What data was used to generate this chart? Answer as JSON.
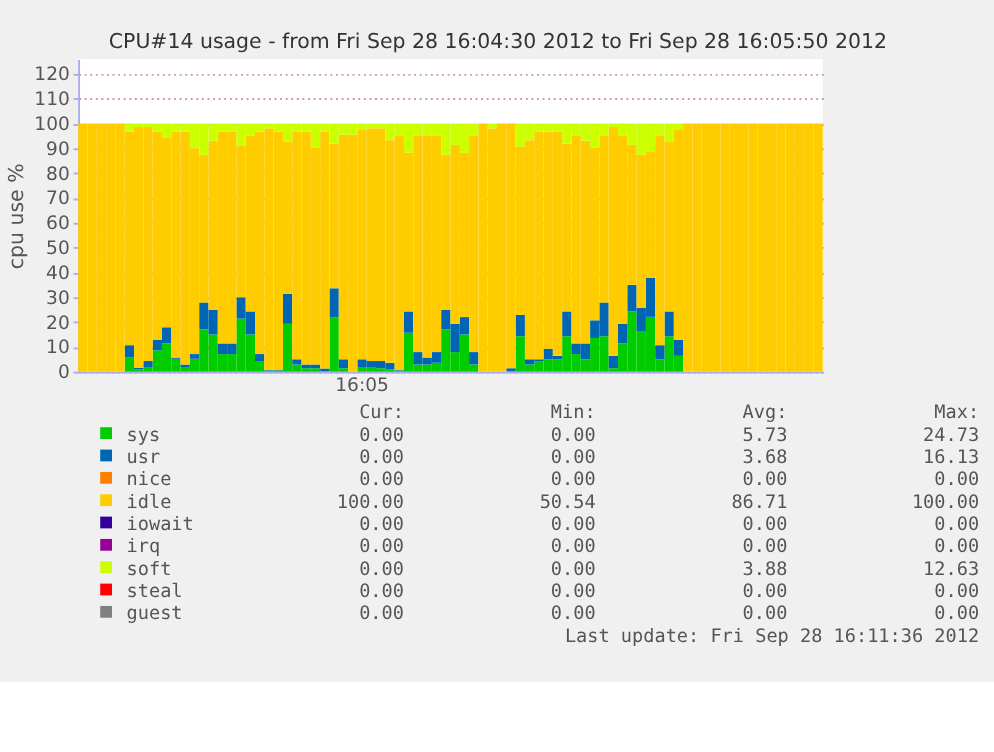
{
  "chart_data": {
    "type": "bar",
    "stacked": true,
    "title": "CPU#14 usage - from Fri Sep 28 16:04:30 2012 to Fri Sep 28 16:05:50 2012",
    "ylabel": "cpu use %",
    "categories": [
      null,
      null,
      null,
      null,
      null,
      null,
      null,
      null,
      null,
      null,
      null,
      null,
      null,
      null,
      null,
      null,
      null,
      null,
      null,
      null,
      null,
      null,
      null,
      null,
      null,
      null,
      null,
      null,
      null,
      null,
      "16:05",
      null,
      null,
      null,
      null,
      null,
      null,
      null,
      null,
      null,
      null,
      null,
      null,
      null,
      null,
      null,
      null,
      null,
      null,
      null,
      null,
      null,
      null,
      null,
      null,
      null,
      null,
      null,
      null,
      null,
      null,
      null,
      null,
      null,
      null,
      null,
      null,
      null,
      null,
      null,
      null,
      null,
      null,
      null,
      null,
      null,
      null,
      null,
      null,
      null
    ],
    "ylim": [
      0,
      126
    ],
    "yticks": [
      0,
      10,
      20,
      30,
      40,
      50,
      60,
      70,
      80,
      90,
      100,
      110,
      120
    ],
    "grid": "y",
    "legend": "bottom",
    "series": [
      {
        "name": "sys",
        "color": "#00cc00",
        "values": [
          0,
          0,
          0,
          0,
          0,
          5.7,
          1,
          1.9,
          8.6,
          11.4,
          5.2,
          1.9,
          5.2,
          17.1,
          15,
          7.1,
          7.1,
          21.4,
          15,
          4.3,
          0.5,
          0.5,
          19.3,
          2.9,
          1.4,
          1.4,
          0.3,
          22,
          1.4,
          0,
          1.9,
          1.9,
          1.4,
          1,
          0.5,
          15.7,
          2.9,
          2.9,
          3.6,
          17.1,
          7.9,
          15,
          2.9,
          0,
          0,
          0,
          0.3,
          14.3,
          2.9,
          4.3,
          5,
          5,
          14.3,
          7.1,
          5,
          13.6,
          14.3,
          1.4,
          11.4,
          24.3,
          16.4,
          22.1,
          5,
          14.3,
          6.4,
          0,
          0,
          0,
          0,
          0,
          0,
          0,
          0,
          0,
          0,
          0,
          0,
          0,
          0,
          0
        ]
      },
      {
        "name": "usr",
        "color": "#0066b3",
        "values": [
          0,
          0,
          0,
          0,
          0,
          5,
          0.5,
          2.4,
          4.3,
          6.5,
          0.5,
          1,
          1.9,
          10.8,
          10,
          4.3,
          4.3,
          8.6,
          9.3,
          2.8,
          0.2,
          0.2,
          12.1,
          2.1,
          1.5,
          1.5,
          1,
          11.6,
          3.6,
          0,
          3.1,
          2.4,
          2.9,
          2.6,
          0.2,
          8.6,
          5,
          2.8,
          4.3,
          7.9,
          11.4,
          7,
          5,
          0,
          0,
          0,
          1.1,
          8.6,
          2.1,
          0.7,
          4.3,
          1.4,
          10,
          4.3,
          6.4,
          7.1,
          13.6,
          5,
          7.9,
          10.7,
          9.3,
          15.8,
          5.7,
          10,
          6.5,
          0,
          0,
          0,
          0,
          0,
          0,
          0,
          0,
          0,
          0,
          0,
          0,
          0,
          0,
          0
        ]
      },
      {
        "name": "nice",
        "color": "#ff8000",
        "values": [
          0,
          0,
          0,
          0,
          0,
          0,
          0,
          0,
          0,
          0,
          0,
          0,
          0,
          0,
          0,
          0,
          0,
          0,
          0,
          0,
          0,
          0,
          0,
          0,
          0,
          0,
          0,
          0,
          0,
          0,
          0,
          0,
          0,
          0,
          0,
          0,
          0,
          0,
          0,
          0,
          0,
          0,
          0,
          0,
          0,
          0,
          0,
          0,
          0,
          0,
          0,
          0,
          0,
          0,
          0,
          0,
          0,
          0,
          0,
          0,
          0,
          0,
          0,
          0,
          0,
          0,
          0,
          0,
          0,
          0,
          0,
          0,
          0,
          0,
          0,
          0,
          0,
          0,
          0,
          0
        ]
      },
      {
        "name": "idle",
        "color": "#ffcc00",
        "values": [
          100,
          100,
          100,
          100,
          100,
          86,
          97.1,
          94.3,
          83.8,
          76.6,
          91,
          93.8,
          82.9,
          59.5,
          68.1,
          85.3,
          85.3,
          61,
          70.7,
          89.6,
          97.4,
          96,
          61.2,
          91.7,
          93.8,
          87.3,
          95.4,
          58.4,
          90.5,
          95.5,
          92.4,
          93.8,
          93.8,
          89.7,
          94.3,
          64,
          87.1,
          89.3,
          87.1,
          62.4,
          72.1,
          66.3,
          87.1,
          100,
          98,
          100,
          98.6,
          67.8,
          88.3,
          91.7,
          87.4,
          90.3,
          67.6,
          83.6,
          81.7,
          69.5,
          67.1,
          92.2,
          75.7,
          56.4,
          61.7,
          50.9,
          84.3,
          68.3,
          84.5,
          100,
          100,
          100,
          100,
          100,
          100,
          100,
          100,
          100,
          100,
          100,
          100,
          100,
          100,
          100
        ]
      },
      {
        "name": "iowait",
        "color": "#330099",
        "values": [
          0,
          0,
          0,
          0,
          0,
          0,
          0,
          0,
          0,
          0,
          0,
          0,
          0,
          0,
          0,
          0,
          0,
          0,
          0,
          0,
          0,
          0,
          0,
          0,
          0,
          0,
          0,
          0,
          0,
          0,
          0,
          0,
          0,
          0,
          0,
          0,
          0,
          0,
          0,
          0,
          0,
          0,
          0,
          0,
          0,
          0,
          0,
          0,
          0,
          0,
          0,
          0,
          0,
          0,
          0,
          0,
          0,
          0,
          0,
          0,
          0,
          0,
          0,
          0,
          0,
          0,
          0,
          0,
          0,
          0,
          0,
          0,
          0,
          0,
          0,
          0,
          0,
          0,
          0,
          0
        ]
      },
      {
        "name": "irq",
        "color": "#990099",
        "values": [
          0,
          0,
          0,
          0,
          0,
          0,
          0,
          0,
          0,
          0,
          0,
          0,
          0,
          0,
          0,
          0,
          0,
          0,
          0,
          0,
          0,
          0,
          0,
          0,
          0,
          0,
          0,
          0,
          0,
          0,
          0,
          0,
          0,
          0,
          0,
          0,
          0,
          0,
          0,
          0,
          0,
          0,
          0,
          0,
          0,
          0,
          0,
          0,
          0,
          0,
          0,
          0,
          0,
          0,
          0,
          0,
          0,
          0,
          0,
          0,
          0,
          0,
          0,
          0,
          0,
          0,
          0,
          0,
          0,
          0,
          0,
          0,
          0,
          0,
          0,
          0,
          0,
          0,
          0,
          0
        ]
      },
      {
        "name": "soft",
        "color": "#ccff00",
        "values": [
          0,
          0,
          0,
          0,
          0,
          3.3,
          1.4,
          1.4,
          3.3,
          5.5,
          3.3,
          3.3,
          10,
          12.6,
          6.9,
          3.3,
          3.3,
          9,
          5,
          3.3,
          1.9,
          3.3,
          7.4,
          3.3,
          3.3,
          9.8,
          3.3,
          8,
          4.5,
          4.5,
          2.6,
          1.9,
          1.9,
          6.7,
          5,
          11.7,
          5,
          5,
          5,
          12.6,
          8.6,
          11.7,
          5,
          0,
          2,
          0,
          0,
          9.3,
          6.7,
          3.3,
          3.3,
          3.3,
          8.1,
          5,
          6.9,
          9.8,
          5,
          1.4,
          5,
          8.6,
          12.6,
          11.2,
          5,
          7.4,
          2.6,
          0,
          0,
          0,
          0,
          0,
          0,
          0,
          0,
          0,
          0,
          0,
          0,
          0,
          0,
          0
        ]
      },
      {
        "name": "steal",
        "color": "#ff0000",
        "values": [
          0,
          0,
          0,
          0,
          0,
          0,
          0,
          0,
          0,
          0,
          0,
          0,
          0,
          0,
          0,
          0,
          0,
          0,
          0,
          0,
          0,
          0,
          0,
          0,
          0,
          0,
          0,
          0,
          0,
          0,
          0,
          0,
          0,
          0,
          0,
          0,
          0,
          0,
          0,
          0,
          0,
          0,
          0,
          0,
          0,
          0,
          0,
          0,
          0,
          0,
          0,
          0,
          0,
          0,
          0,
          0,
          0,
          0,
          0,
          0,
          0,
          0,
          0,
          0,
          0,
          0,
          0,
          0,
          0,
          0,
          0,
          0,
          0,
          0,
          0,
          0,
          0,
          0,
          0,
          0
        ]
      },
      {
        "name": "guest",
        "color": "#808080",
        "values": [
          0,
          0,
          0,
          0,
          0,
          0,
          0,
          0,
          0,
          0,
          0,
          0,
          0,
          0,
          0,
          0,
          0,
          0,
          0,
          0,
          0,
          0,
          0,
          0,
          0,
          0,
          0,
          0,
          0,
          0,
          0,
          0,
          0,
          0,
          0,
          0,
          0,
          0,
          0,
          0,
          0,
          0,
          0,
          0,
          0,
          0,
          0,
          0,
          0,
          0,
          0,
          0,
          0,
          0,
          0,
          0,
          0,
          0,
          0,
          0,
          0,
          0,
          0,
          0,
          0,
          0,
          0,
          0,
          0,
          0,
          0,
          0,
          0,
          0,
          0,
          0,
          0,
          0,
          0,
          0
        ]
      }
    ],
    "annotations": [
      "Cur:",
      "Min:",
      "Avg:",
      "Max:",
      "0.00",
      "0.00",
      "5.73",
      "24.73",
      "0.00",
      "0.00",
      "3.68",
      "16.13",
      "0.00",
      "0.00",
      "0.00",
      "0.00",
      "100.00",
      "50.54",
      "86.71",
      "100.00",
      "0.00",
      "0.00",
      "0.00",
      "0.00",
      "0.00",
      "0.00",
      "0.00",
      "0.00",
      "0.00",
      "0.00",
      "3.88",
      "12.63",
      "0.00",
      "0.00",
      "0.00",
      "0.00",
      "0.00",
      "0.00",
      "0.00",
      "0.00",
      "Last update: Fri Sep 28 16:11:36 2012"
    ]
  }
}
